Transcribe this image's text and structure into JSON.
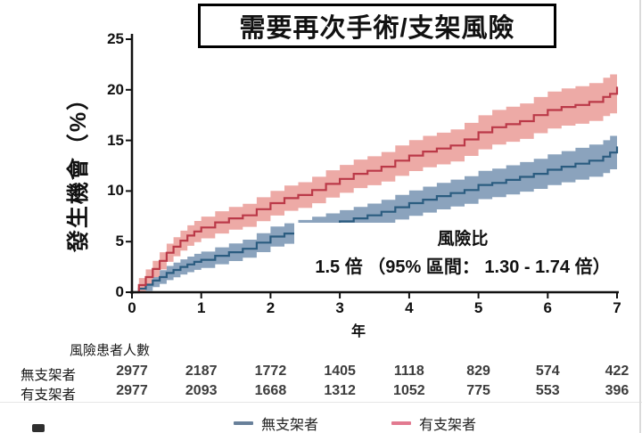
{
  "title": "需要再次手術/支架風險",
  "y_axis": {
    "label": "發生機會（%）",
    "ticks": [
      0,
      5,
      10,
      15,
      20,
      25
    ]
  },
  "x_axis": {
    "label": "年",
    "ticks": [
      0,
      1,
      2,
      3,
      4,
      5,
      6,
      7
    ]
  },
  "annotation": {
    "line1": "風險比",
    "line2": "1.5 倍 （95% 區間： 1.30 - 1.74 倍）"
  },
  "risk_table": {
    "header": "風險患者人數",
    "rows": [
      {
        "label": "無支架者",
        "values": [
          2977,
          2187,
          1772,
          1405,
          1118,
          829,
          574,
          422
        ]
      },
      {
        "label": "有支架者",
        "values": [
          2977,
          2093,
          1668,
          1312,
          1052,
          775,
          553,
          396
        ]
      }
    ]
  },
  "legend": [
    {
      "label": "無支架者",
      "color": "#68809a"
    },
    {
      "label": "有支架者",
      "color": "#e27a90"
    }
  ],
  "colors": {
    "no_stent_line": "#2b5c80",
    "no_stent_band": "#8ba3bd",
    "stent_line": "#bb3948",
    "stent_band": "#edaaa6",
    "axis": "#111111"
  },
  "chart_data": {
    "type": "line",
    "title": "需要再次手術/支架風險",
    "xlabel": "年",
    "ylabel": "發生機會（%）",
    "xlim": [
      0,
      7
    ],
    "ylim": [
      0,
      25
    ],
    "grid": false,
    "legend_position": "bottom",
    "x": [
      0,
      0.1,
      0.2,
      0.3,
      0.4,
      0.5,
      0.6,
      0.7,
      0.8,
      0.9,
      1,
      1.2,
      1.4,
      1.6,
      1.8,
      2,
      2.2,
      2.4,
      2.6,
      2.8,
      3,
      3.2,
      3.4,
      3.6,
      3.8,
      4,
      4.2,
      4.4,
      4.6,
      4.8,
      5,
      5.2,
      5.4,
      5.6,
      5.8,
      6,
      6.2,
      6.4,
      6.6,
      6.8,
      6.9,
      7
    ],
    "series": [
      {
        "name": "無支架者",
        "line_color": "#2b5c80",
        "band_color": "#8ba3bd",
        "values": [
          0,
          0.35,
          0.75,
          1.15,
          1.5,
          1.9,
          2.2,
          2.5,
          2.75,
          3,
          3.2,
          3.6,
          3.95,
          4.3,
          4.9,
          5.5,
          5.8,
          6.1,
          6.4,
          6.7,
          7,
          7.3,
          7.6,
          7.95,
          8.4,
          8.8,
          9.15,
          9.5,
          9.8,
          10.1,
          10.6,
          10.8,
          11.1,
          11.4,
          11.7,
          12.1,
          12.4,
          12.7,
          13,
          13.4,
          13.8,
          14.4
        ],
        "lower": [
          0,
          0,
          0.14,
          0.51,
          0.83,
          1.2,
          1.47,
          1.75,
          1.98,
          2.21,
          2.39,
          2.76,
          3.08,
          3.41,
          3.96,
          4.51,
          4.79,
          5.06,
          5.34,
          5.61,
          5.89,
          6.17,
          6.44,
          6.76,
          7.18,
          7.55,
          7.87,
          8.19,
          8.47,
          8.74,
          9.2,
          9.39,
          9.66,
          9.94,
          10.21,
          10.58,
          10.86,
          11.13,
          11.41,
          11.78,
          12.15,
          12.7
        ],
        "upper": [
          0,
          0.93,
          1.36,
          1.79,
          2.17,
          2.6,
          2.93,
          3.25,
          3.52,
          3.79,
          4.01,
          4.44,
          4.82,
          5.19,
          5.84,
          6.49,
          6.81,
          7.14,
          7.46,
          7.79,
          8.11,
          8.43,
          8.76,
          9.14,
          9.62,
          10.05,
          10.43,
          10.81,
          11.13,
          11.46,
          12,
          12.21,
          12.54,
          12.86,
          13.19,
          13.62,
          13.94,
          14.27,
          14.59,
          15.02,
          15.45,
          16.1
        ]
      },
      {
        "name": "有支架者",
        "line_color": "#bb3948",
        "band_color": "#edaaa6",
        "values": [
          0,
          0.7,
          1.5,
          2.3,
          3.1,
          3.9,
          4.5,
          5.1,
          5.6,
          6,
          6.4,
          6.9,
          7.3,
          7.6,
          8.2,
          8.8,
          9.3,
          9.6,
          10.1,
          10.7,
          11.2,
          11.7,
          12,
          12.4,
          13,
          13.5,
          13.9,
          14.2,
          14.5,
          15.1,
          15.8,
          16.3,
          16.6,
          16.9,
          17.5,
          18,
          18.3,
          18.5,
          18.8,
          19.3,
          19.6,
          20.3
        ],
        "lower": [
          0,
          0,
          0.75,
          1.5,
          2.25,
          3,
          3.56,
          4.12,
          4.59,
          4.96,
          5.33,
          5.8,
          6.18,
          6.46,
          7.02,
          7.58,
          8.05,
          8.33,
          8.79,
          9.35,
          9.82,
          10.29,
          10.57,
          10.94,
          11.5,
          11.97,
          12.35,
          12.63,
          12.91,
          13.47,
          14.12,
          14.59,
          14.87,
          15.15,
          15.71,
          16.18,
          16.46,
          16.65,
          16.93,
          17.4,
          17.68,
          18.33
        ],
        "upper": [
          0,
          1.4,
          2.25,
          3.1,
          3.95,
          4.8,
          5.44,
          6.08,
          6.61,
          7.04,
          7.47,
          8,
          8.42,
          8.74,
          9.38,
          10.02,
          10.55,
          10.87,
          11.41,
          12.05,
          12.58,
          13.11,
          13.43,
          13.86,
          14.5,
          15.03,
          15.45,
          15.77,
          16.09,
          16.73,
          17.48,
          18.01,
          18.33,
          18.65,
          19.29,
          19.82,
          20.14,
          20.35,
          20.67,
          21.2,
          21.52,
          22.27
        ]
      }
    ]
  }
}
